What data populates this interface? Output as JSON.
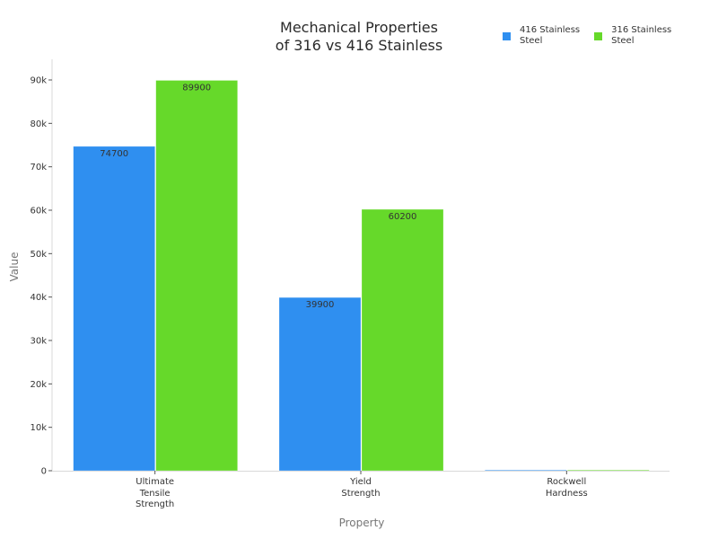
{
  "chart_data": {
    "type": "bar",
    "title": "Mechanical Properties\nof 316 vs 416 Stainless",
    "title_lines": [
      "Mechanical Properties",
      "of 316 vs 416 Stainless"
    ],
    "xlabel": "Property",
    "ylabel": "Value",
    "categories": [
      "Ultimate Tensile Strength",
      "Yield Strength",
      "Rockwell Hardness"
    ],
    "category_lines": [
      [
        "Ultimate",
        "Tensile",
        "Strength"
      ],
      [
        "Yield",
        "Strength"
      ],
      [
        "Rockwell",
        "Hardness"
      ]
    ],
    "series": [
      {
        "name": "416 Stainless Steel",
        "color": "#2f8ff0",
        "values": [
          74700,
          39900,
          82
        ]
      },
      {
        "name": "316 Stainless Steel",
        "color": "#66d92a",
        "values": [
          89900,
          60200,
          79
        ]
      }
    ],
    "data_labels": [
      [
        "74700",
        "39900",
        ""
      ],
      [
        "89900",
        "60200",
        ""
      ]
    ],
    "ylim": [
      0,
      95000
    ],
    "yticks": [
      0,
      10000,
      20000,
      30000,
      40000,
      50000,
      60000,
      70000,
      80000,
      90000
    ],
    "ytick_labels": [
      "0",
      "10k",
      "20k",
      "30k",
      "40k",
      "50k",
      "60k",
      "70k",
      "80k",
      "90k"
    ],
    "legend_position": "top-right",
    "grid": false
  },
  "legend": [
    {
      "line1": "416 Stainless",
      "line2": "Steel",
      "color": "#2f8ff0"
    },
    {
      "line1": "316 Stainless",
      "line2": "Steel",
      "color": "#66d92a"
    }
  ]
}
